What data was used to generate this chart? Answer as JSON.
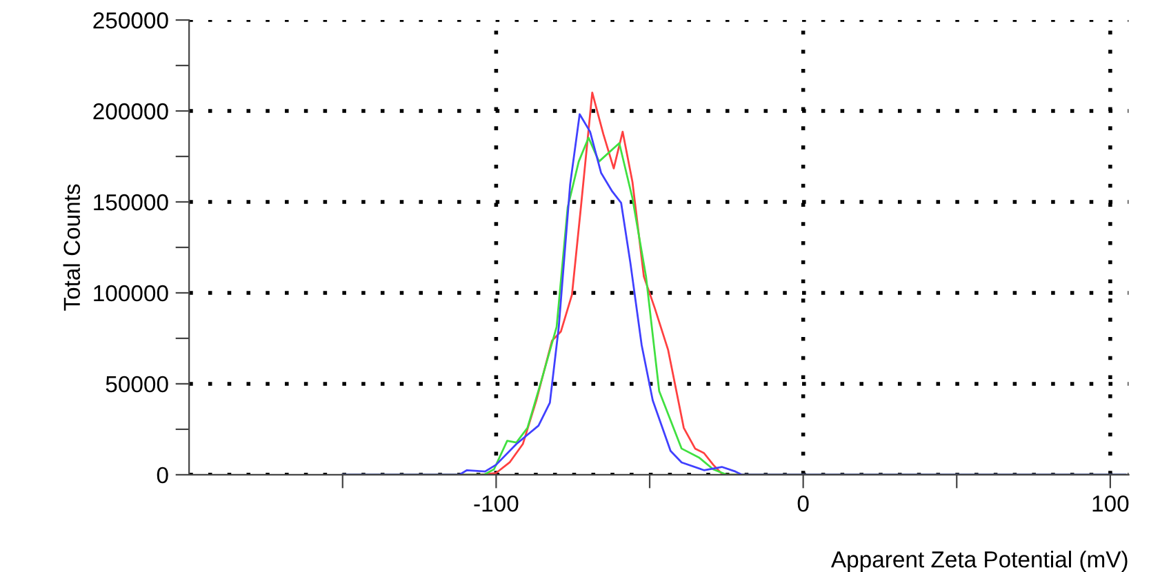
{
  "chart_data": {
    "type": "line",
    "xlabel": "Apparent Zeta Potential (mV)",
    "ylabel": "Total Counts",
    "xlim": [
      -200,
      106
    ],
    "xticks": [
      {
        "value": -150,
        "label": null
      },
      -100,
      {
        "value": -50,
        "label": null
      },
      0,
      {
        "value": 50,
        "label": null
      },
      100
    ],
    "ylim": [
      0,
      250000
    ],
    "yticks": [
      0,
      {
        "value": 25000,
        "label": null
      },
      50000,
      {
        "value": 75000,
        "label": null
      },
      100000,
      {
        "value": 125000,
        "label": null
      },
      150000,
      {
        "value": 175000,
        "label": null
      },
      200000,
      {
        "value": 225000,
        "label": null
      },
      250000
    ],
    "grid": true,
    "line_style": "solid",
    "marker": "none",
    "series": [
      {
        "color": "#ff4040",
        "x": [
          -150,
          -105.1,
          -100,
          -95.6,
          -91.3,
          -86.9,
          -81.8,
          -78.9,
          -75.3,
          -72.4,
          -68.7,
          -65.1,
          -61.7,
          -58.8,
          -55.6,
          -51.9,
          -48.3,
          -44,
          -38.9,
          -35.2,
          -32.3,
          -29.3,
          -26.2,
          105
        ],
        "values": [
          0,
          0,
          1000,
          6800,
          16900,
          40900,
          73700,
          78800,
          99000,
          147000,
          210100,
          187400,
          168400,
          188600,
          160900,
          109100,
          91400,
          68700,
          25800,
          14400,
          11900,
          5500,
          0,
          0
        ]
      },
      {
        "color": "#40e040",
        "x": [
          -150,
          -104,
          -100.7,
          -96.4,
          -93.4,
          -89.8,
          -85.4,
          -80.3,
          -76.7,
          -73.1,
          -69.9,
          -66.5,
          -59.9,
          -55.6,
          -51.2,
          -46.9,
          -39.6,
          -33.8,
          -29.3,
          -24.9,
          105
        ],
        "values": [
          0,
          0,
          3000,
          18700,
          17700,
          25800,
          51000,
          81300,
          147000,
          172200,
          185300,
          172200,
          182300,
          152000,
          109100,
          46000,
          14400,
          9300,
          3000,
          0,
          0
        ]
      },
      {
        "color": "#4040ff",
        "x": [
          -150,
          -112,
          -109.5,
          -103.6,
          -100,
          -93.4,
          -86.2,
          -82.5,
          -79.6,
          -75.9,
          -72.8,
          -69.4,
          -65.8,
          -62.2,
          -59.3,
          -56.3,
          -52.6,
          -49,
          -43.2,
          -39.6,
          -32.3,
          -26.5,
          -22.1,
          -19.9,
          105
        ],
        "values": [
          0,
          0,
          2500,
          1800,
          5500,
          16900,
          27000,
          39600,
          81300,
          159600,
          198200,
          188600,
          165900,
          155800,
          149500,
          116700,
          71200,
          40900,
          13100,
          6800,
          2500,
          4300,
          1800,
          0,
          0
        ]
      }
    ]
  }
}
